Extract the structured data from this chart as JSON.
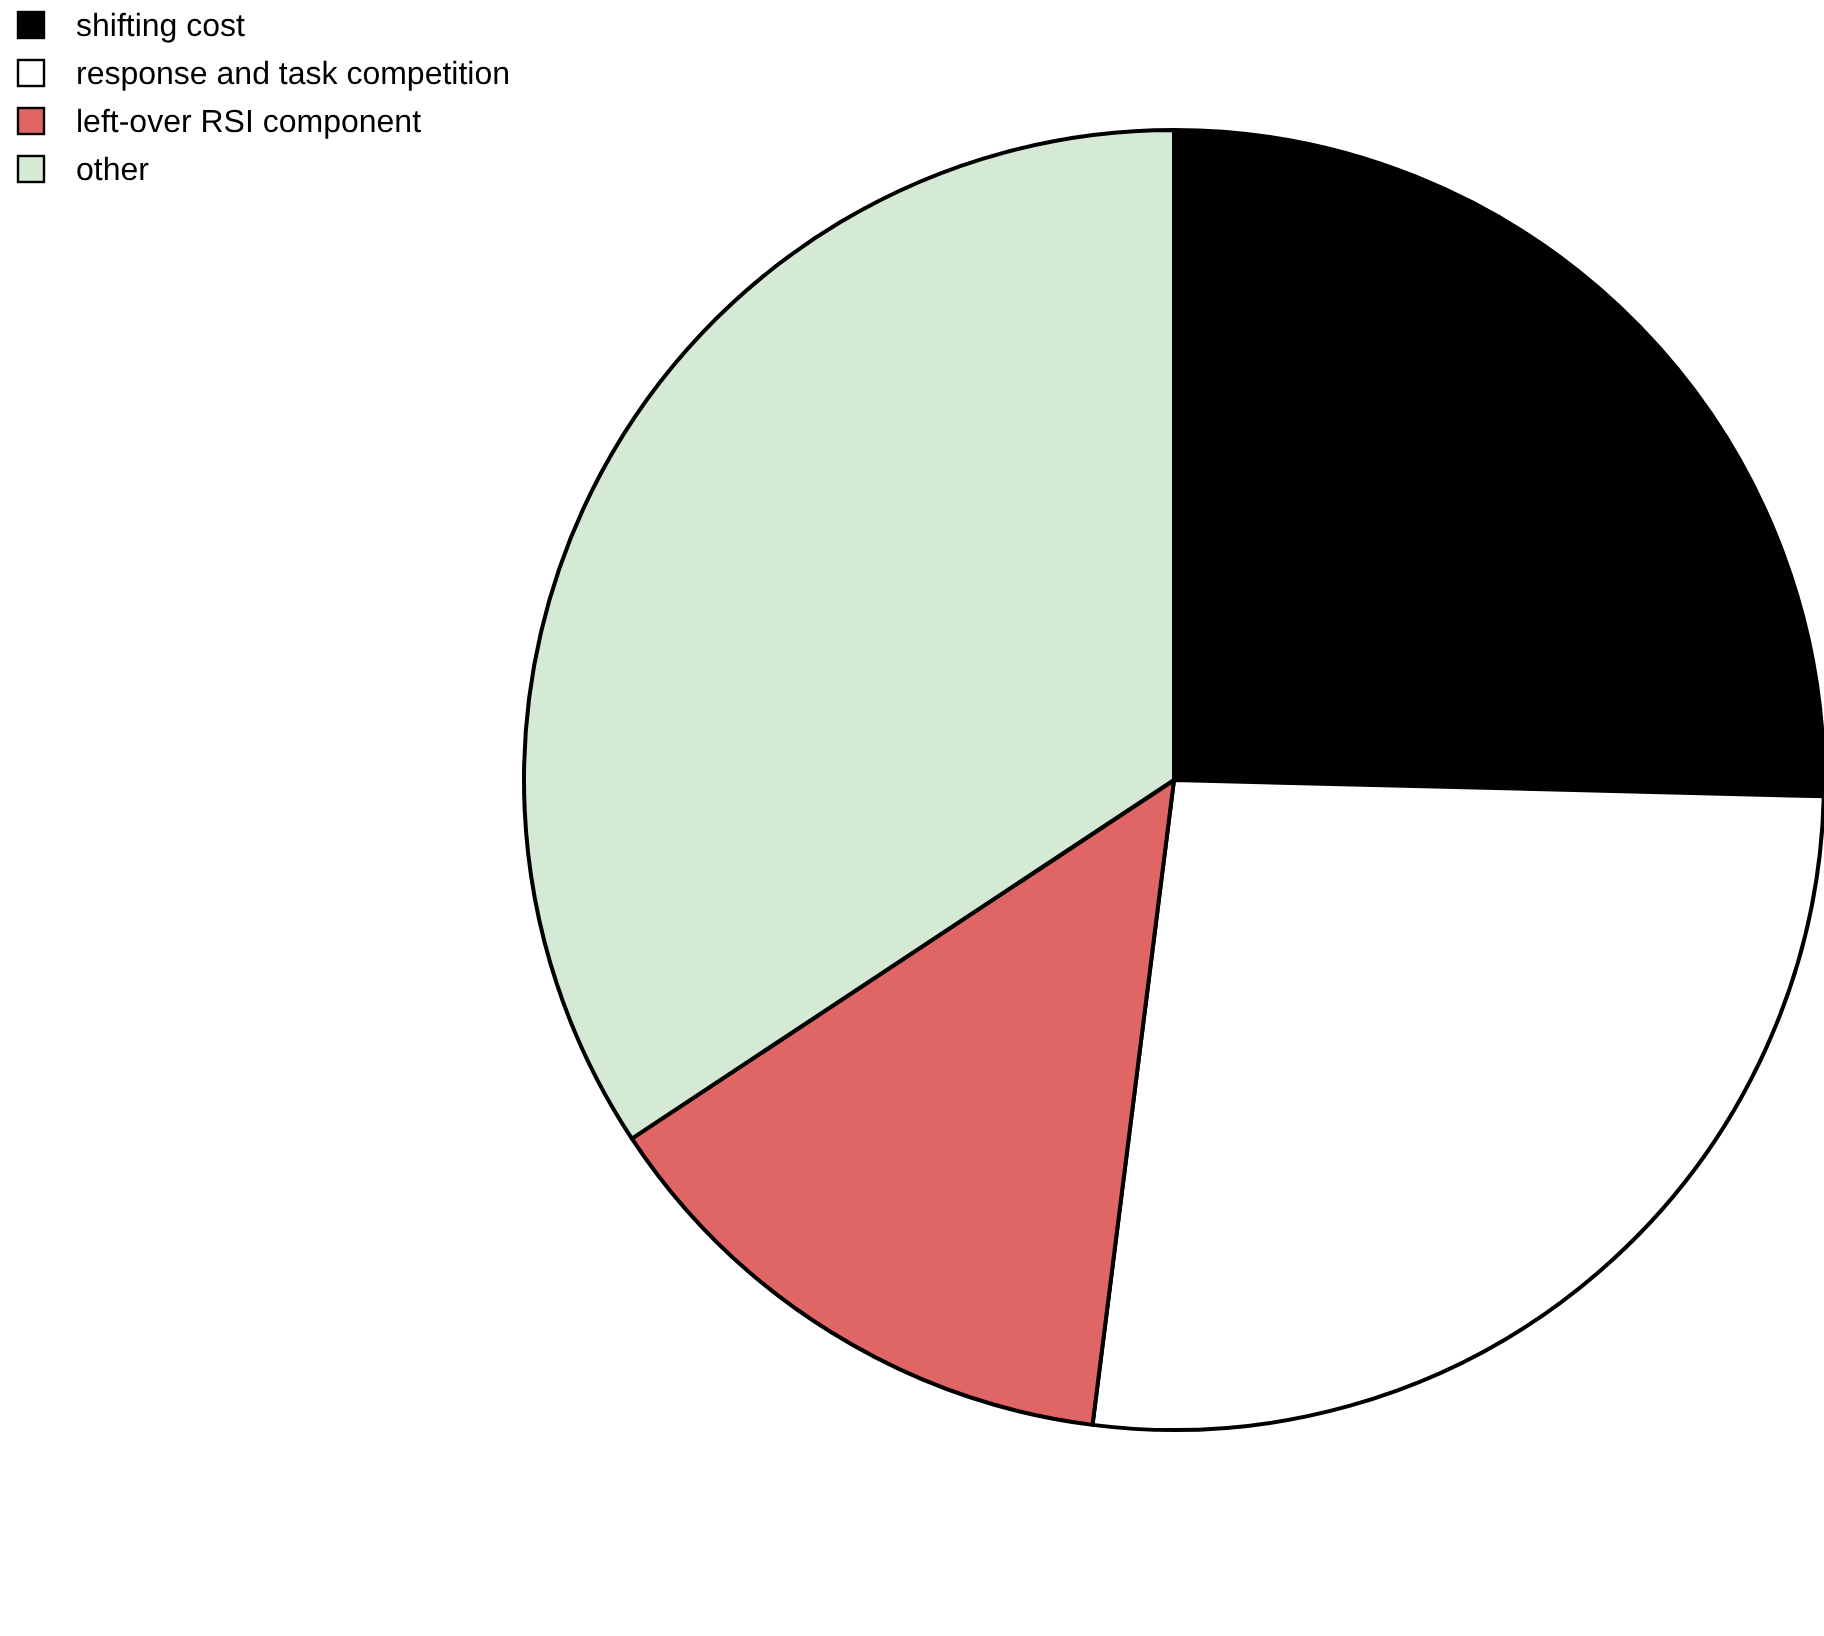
{
  "chart_data": {
    "type": "pie",
    "categories": [
      "shifting cost",
      "response and task competition",
      "left-over RSI component",
      "other"
    ],
    "values": [
      25.4,
      26.6,
      13.7,
      34.3
    ],
    "colors": [
      "#000000",
      "#ffffff",
      "#e06666",
      "#d4ead4"
    ],
    "legend": "top left"
  }
}
